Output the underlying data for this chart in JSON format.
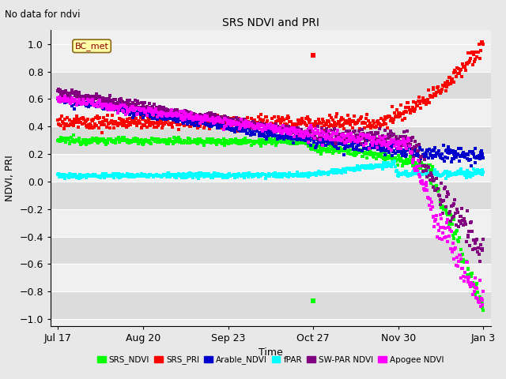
{
  "title": "SRS NDVI and PRI",
  "subtitle": "No data for ndvi",
  "ylabel": "NDVI, PRI",
  "xlabel": "Time",
  "ylim": [
    -1.05,
    1.1
  ],
  "yticks": [
    -1.0,
    -0.8,
    -0.6,
    -0.4,
    -0.2,
    0.0,
    0.2,
    0.4,
    0.6,
    0.8,
    1.0
  ],
  "xtick_positions": [
    0,
    34,
    68,
    102,
    136,
    170
  ],
  "xtick_labels": [
    "Jul 17",
    "Aug 20",
    "Sep 23",
    "Oct 27",
    "Nov 30",
    "Jan 3"
  ],
  "annotation": "BC_met",
  "colors": {
    "SRS_NDVI": "#00ff00",
    "SRS_PRI": "#ff0000",
    "Arable_NDVI": "#0000cc",
    "fPAR": "#00ffff",
    "SW_PAR_NDVI": "#800080",
    "Apogee_NDVI": "#ff00ff"
  },
  "legend_labels": [
    "SRS_NDVI",
    "SRS_PRI",
    "Arable_NDVI",
    "fPAR",
    "SW-PAR NDVI",
    "Apogee NDVI"
  ],
  "fig_bg": "#e8e8e8",
  "plot_bg": "#f0f0f0",
  "stripe_color": "#dcdcdc",
  "grid_color": "#ffffff"
}
